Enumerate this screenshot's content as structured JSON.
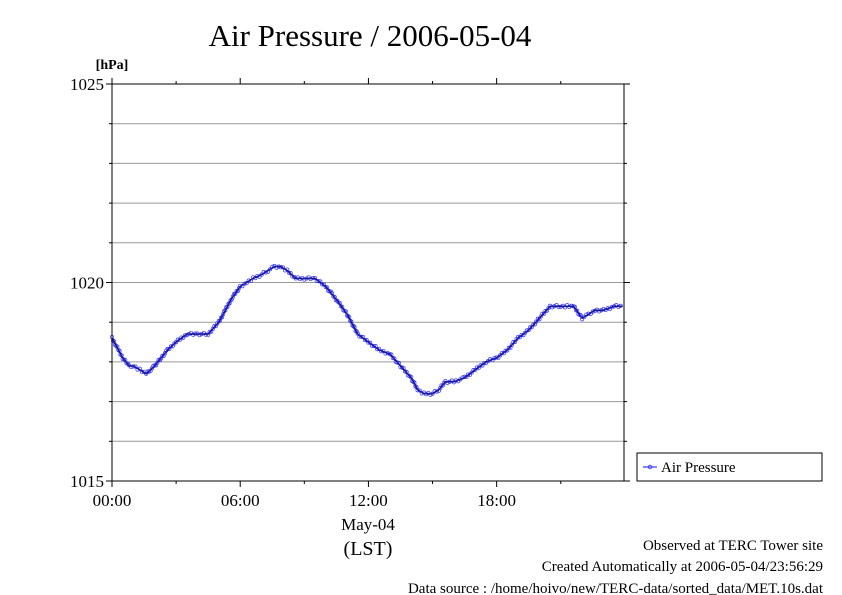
{
  "chart_data": {
    "type": "line",
    "title": "Air Pressure / 2006-05-04",
    "y_unit_label": "[hPa]",
    "xlabel": "(LST)",
    "date_label": "May-04",
    "ylim": [
      1015,
      1025
    ],
    "y_ticks": [
      1015,
      1020,
      1025
    ],
    "x_ticks": [
      "00:00",
      "06:00",
      "12:00",
      "18:00"
    ],
    "x_tick_hours": [
      0,
      6,
      12,
      18
    ],
    "xlim_hours": [
      0,
      23.96
    ],
    "grid": true,
    "legend_position": "right-bottom",
    "series": [
      {
        "name": "Air Pressure",
        "color": "#3333ff",
        "x_hours": [
          0.0,
          0.3,
          0.5,
          0.8,
          1.0,
          1.3,
          1.6,
          1.8,
          2.0,
          2.3,
          2.6,
          3.0,
          3.5,
          4.0,
          4.5,
          5.0,
          5.3,
          5.6,
          6.0,
          6.3,
          6.6,
          7.0,
          7.3,
          7.6,
          7.9,
          8.2,
          8.6,
          9.0,
          9.5,
          10.0,
          10.3,
          10.6,
          11.0,
          11.5,
          12.0,
          12.5,
          13.0,
          13.5,
          14.0,
          14.3,
          14.6,
          15.0,
          15.3,
          15.6,
          16.0,
          16.5,
          17.0,
          17.5,
          18.0,
          18.5,
          19.0,
          19.5,
          20.0,
          20.5,
          21.0,
          21.3,
          21.6,
          22.0,
          22.3,
          22.6,
          23.0,
          23.5,
          23.9
        ],
        "values": [
          1018.6,
          1018.3,
          1018.1,
          1017.9,
          1017.9,
          1017.8,
          1017.7,
          1017.8,
          1017.9,
          1018.1,
          1018.3,
          1018.5,
          1018.7,
          1018.7,
          1018.7,
          1019.0,
          1019.3,
          1019.6,
          1019.9,
          1020.0,
          1020.1,
          1020.2,
          1020.3,
          1020.4,
          1020.4,
          1020.3,
          1020.1,
          1020.1,
          1020.1,
          1019.9,
          1019.7,
          1019.5,
          1019.2,
          1018.7,
          1018.5,
          1018.3,
          1018.2,
          1017.9,
          1017.6,
          1017.3,
          1017.2,
          1017.2,
          1017.3,
          1017.5,
          1017.5,
          1017.6,
          1017.8,
          1018.0,
          1018.1,
          1018.3,
          1018.6,
          1018.8,
          1019.1,
          1019.4,
          1019.4,
          1019.4,
          1019.4,
          1019.1,
          1019.2,
          1019.3,
          1019.3,
          1019.4,
          1019.4
        ]
      }
    ]
  },
  "footer": {
    "line1": "Observed at TERC Tower site",
    "line2": "Created Automatically at 2006-05-04/23:56:29",
    "line3": "Data source : /home/hoivo/new/TERC-data/sorted_data/MET.10s.dat"
  }
}
